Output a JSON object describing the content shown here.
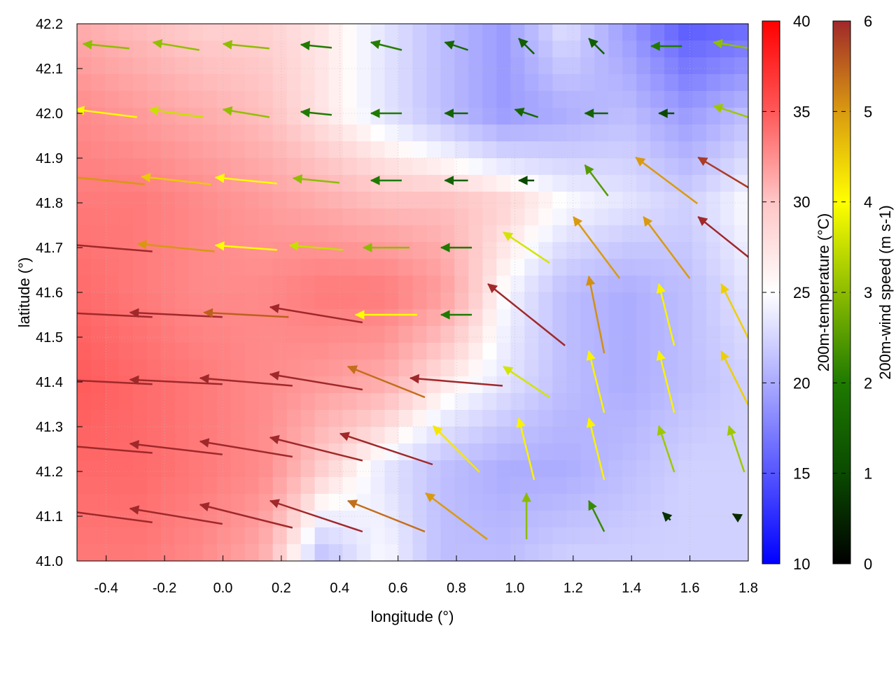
{
  "chart_data": {
    "type": "heatmap",
    "subtype": "heatmap-with-wind-vectors",
    "xlabel": "longitude (°)",
    "ylabel": "latitude (°)",
    "xlim": [
      -0.5,
      1.8
    ],
    "ylim": [
      41.0,
      42.2
    ],
    "xticks": [
      "-0.4",
      "-0.2",
      "0.0",
      "0.2",
      "0.4",
      "0.6",
      "0.8",
      "1.0",
      "1.2",
      "1.4",
      "1.6",
      "1.8"
    ],
    "yticks": [
      "41.0",
      "41.1",
      "41.2",
      "41.3",
      "41.4",
      "41.5",
      "41.6",
      "41.7",
      "41.8",
      "41.9",
      "42.0",
      "42.1",
      "42.2"
    ],
    "grid": true,
    "temperature": {
      "label": "200m-temperature (°C)",
      "range": [
        10,
        40
      ],
      "colorbar_ticks": [
        "10",
        "15",
        "20",
        "25",
        "30",
        "35",
        "40"
      ],
      "colors": {
        "low": "#0000ff",
        "mid": "#ffffff",
        "high": "#ff0000"
      },
      "lon": [
        -0.5,
        -0.29,
        -0.08,
        0.13,
        0.34,
        0.55,
        0.75,
        0.96,
        1.17,
        1.38,
        1.59,
        1.8
      ],
      "lat": [
        42.2,
        42.0,
        41.8,
        41.6,
        41.4,
        41.2,
        41.0
      ],
      "values": [
        [
          29,
          28,
          27,
          27,
          26,
          24,
          22,
          20,
          24,
          20,
          16,
          17
        ],
        [
          31,
          30,
          29,
          28,
          26,
          24,
          22,
          20,
          21,
          22,
          20,
          22
        ],
        [
          32,
          32,
          31,
          30,
          29,
          28,
          28,
          27,
          25,
          24,
          23,
          25
        ],
        [
          33,
          32,
          31,
          31,
          32,
          32,
          30,
          25,
          22,
          21,
          22,
          24
        ],
        [
          34,
          33,
          32,
          31,
          30,
          29,
          26,
          24,
          22,
          21,
          22,
          23
        ],
        [
          33,
          33,
          32,
          31,
          27,
          24,
          22,
          21,
          21,
          22,
          23,
          23
        ],
        [
          32,
          32,
          31,
          29,
          22,
          25,
          22,
          22,
          23,
          23,
          23,
          23
        ]
      ]
    },
    "wind": {
      "label": "200m-wind speed (m s-1)",
      "label_main": "200m-wind speed (m s",
      "label_sup": "-1",
      "label_end": ")",
      "range": [
        0,
        6
      ],
      "colorbar_ticks": [
        "0",
        "1",
        "2",
        "3",
        "4",
        "5",
        "6"
      ],
      "colors": [
        "#000000",
        "#0a4a00",
        "#1e7a00",
        "#8cbc00",
        "#ffff00",
        "#d99a10",
        "#a0282a"
      ],
      "lon": [
        -0.4,
        -0.16,
        0.08,
        0.32,
        0.56,
        0.8,
        1.04,
        1.28,
        1.52,
        1.76
      ],
      "lat": [
        42.15,
        42.0,
        41.85,
        41.7,
        41.55,
        41.4,
        41.25,
        41.1
      ],
      "u": [
        [
          -3,
          -3,
          -3,
          -2,
          -2,
          -1.5,
          -1,
          -1,
          -2,
          -3
        ],
        [
          -4,
          -3.5,
          -3,
          -2,
          -2,
          -1.5,
          -1.5,
          -1.5,
          -1,
          -3
        ],
        [
          -5,
          -4.5,
          -4,
          -3,
          -2,
          -1.5,
          -1,
          -1.5,
          -4,
          -5
        ],
        [
          -6,
          -5,
          -4,
          -3.5,
          -3,
          -2,
          -3,
          -3,
          -3,
          -5
        ],
        [
          -6,
          -6,
          -5.5,
          -6,
          -4,
          -2,
          -5,
          -1,
          -1,
          -2
        ],
        [
          -6,
          -6,
          -6,
          -6,
          -5,
          -6,
          -3,
          -1,
          -1,
          -2
        ],
        [
          -6,
          -6,
          -6,
          -6,
          -6,
          -3,
          -1,
          -1,
          -1,
          -1
        ],
        [
          -6,
          -6,
          -6,
          -6,
          -5,
          -4,
          0,
          -1,
          -0.5,
          -0.5
        ]
      ],
      "v": [
        [
          0.3,
          0.5,
          0.3,
          0.2,
          0.5,
          0.5,
          1,
          1,
          0,
          0.5
        ],
        [
          0.5,
          0.5,
          0.5,
          0.2,
          0,
          0,
          0.5,
          0,
          0,
          1
        ],
        [
          0.5,
          0.5,
          0.4,
          0.3,
          0,
          0,
          0,
          2,
          3,
          3
        ],
        [
          0.5,
          0.5,
          0.3,
          0.3,
          0,
          0,
          2,
          4,
          4,
          4
        ],
        [
          0.3,
          0.3,
          0.3,
          1,
          0,
          0,
          4,
          5,
          4,
          4
        ],
        [
          0.3,
          0.3,
          0.5,
          1,
          2,
          0.5,
          2,
          4,
          4,
          4
        ],
        [
          0.5,
          0.7,
          1,
          1.5,
          2,
          3,
          4,
          4,
          3,
          3
        ],
        [
          0.8,
          1,
          1.5,
          2,
          2,
          3,
          3,
          2,
          0.5,
          0.3
        ]
      ]
    }
  }
}
